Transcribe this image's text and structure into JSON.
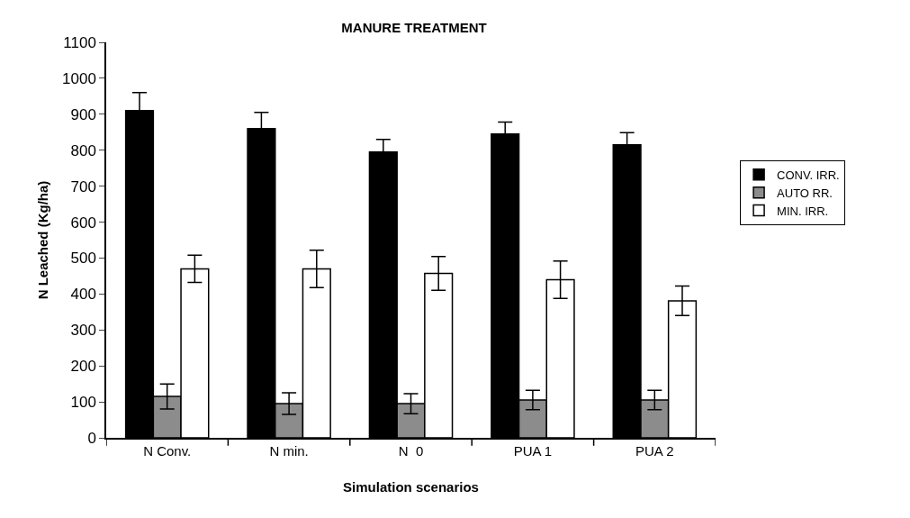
{
  "chart_data": {
    "type": "bar",
    "title": "MANURE TREATMENT",
    "xlabel": "Simulation scenarios",
    "ylabel": "N Leached (Kg/ha)",
    "categories": [
      "N Conv.",
      "N min.",
      "N  0",
      "PUA 1",
      "PUA 2"
    ],
    "series": [
      {
        "name": "CONV. IRR.",
        "color": "#000000",
        "values": [
          910,
          860,
          795,
          845,
          815
        ],
        "errors": [
          50,
          45,
          35,
          33,
          34
        ]
      },
      {
        "name": "AUTO RR.",
        "color": "#8c8c8c",
        "values": [
          115,
          95,
          95,
          105,
          105
        ],
        "errors": [
          35,
          30,
          28,
          27,
          27
        ]
      },
      {
        "name": "MIN. IRR.",
        "color": "#ffffff",
        "values": [
          470,
          470,
          457,
          440,
          381
        ],
        "errors": [
          38,
          52,
          47,
          52,
          41
        ]
      }
    ],
    "ylim": [
      0,
      1100
    ],
    "yticks": [
      0,
      100,
      200,
      300,
      400,
      500,
      600,
      700,
      800,
      900,
      1000,
      1100
    ],
    "grid": false,
    "legend": "right"
  }
}
